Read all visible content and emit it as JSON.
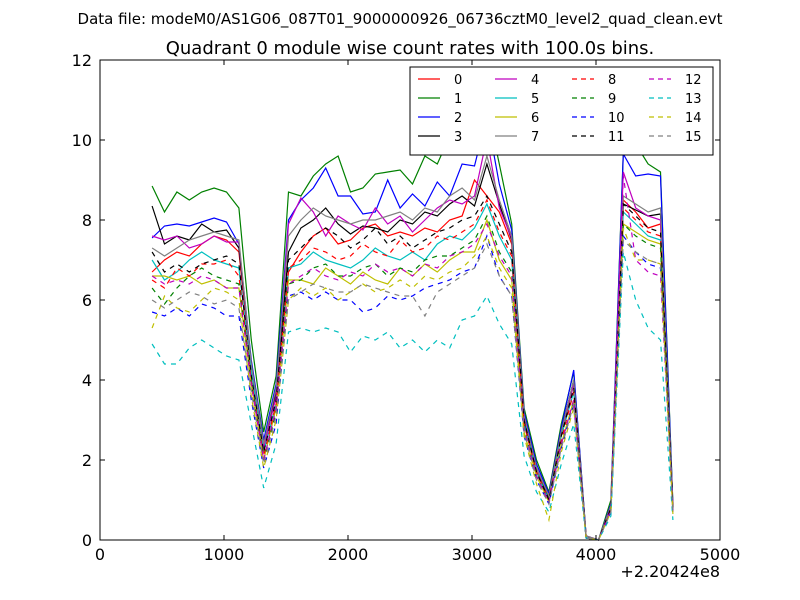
{
  "chart_data": {
    "type": "line",
    "suptitle": "Data file: modeM0/AS1G06_087T01_9000000926_06736cztM0_level2_quad_clean.evt",
    "title": "Quadrant 0 module wise count rates with 100.0s bins.",
    "xlabel": "",
    "ylabel": "",
    "x_offset_label": "+2.20424e8",
    "xlim": [
      0,
      5000
    ],
    "ylim": [
      0,
      12
    ],
    "xticks": [
      0,
      1000,
      2000,
      3000,
      4000,
      5000
    ],
    "yticks": [
      0,
      2,
      4,
      6,
      8,
      10,
      12
    ],
    "grid": false,
    "legend_position": "top-right",
    "legend_columns": 4,
    "x": [
      420,
      520,
      620,
      720,
      820,
      920,
      1020,
      1120,
      1220,
      1320,
      1420,
      1520,
      1620,
      1720,
      1820,
      1920,
      2020,
      2120,
      2220,
      2320,
      2420,
      2520,
      2620,
      2720,
      2820,
      2920,
      3020,
      3120,
      3220,
      3320,
      3420,
      3520,
      3620,
      3720,
      3820,
      3920,
      4020,
      4120,
      4220,
      4320,
      4420,
      4520,
      4620
    ],
    "series": [
      {
        "name": "0",
        "color": "#ff0000",
        "dash": "solid",
        "values": [
          6.7,
          7.0,
          7.2,
          7.1,
          7.4,
          7.6,
          7.5,
          7.2,
          4.3,
          2.3,
          3.6,
          6.7,
          7.2,
          7.6,
          7.8,
          7.4,
          7.5,
          7.8,
          7.9,
          7.6,
          7.7,
          7.6,
          7.8,
          7.7,
          8.0,
          8.1,
          9.0,
          8.6,
          8.2,
          7.4,
          3.1,
          1.7,
          1.1,
          2.6,
          3.9,
          0.1,
          0.0,
          0.8,
          8.5,
          8.2,
          7.8,
          7.9,
          0.8
        ]
      },
      {
        "name": "1",
        "color": "#008000",
        "dash": "solid",
        "values": [
          8.85,
          8.2,
          8.7,
          8.5,
          8.7,
          8.8,
          8.7,
          8.3,
          5.0,
          2.7,
          4.1,
          8.7,
          8.6,
          9.1,
          9.4,
          9.6,
          8.7,
          8.8,
          9.15,
          9.2,
          9.25,
          8.9,
          9.6,
          9.4,
          10.1,
          9.9,
          10.8,
          10.85,
          9.4,
          7.9,
          3.3,
          2.0,
          1.2,
          2.9,
          4.2,
          0.1,
          0.0,
          1.0,
          9.7,
          9.9,
          9.4,
          9.2,
          0.9
        ]
      },
      {
        "name": "2",
        "color": "#0000ff",
        "dash": "solid",
        "values": [
          7.55,
          7.85,
          7.9,
          7.85,
          7.95,
          8.05,
          7.95,
          7.4,
          4.5,
          2.5,
          3.9,
          8.0,
          8.5,
          8.8,
          9.3,
          8.6,
          8.6,
          8.15,
          8.2,
          9.0,
          8.3,
          8.65,
          8.35,
          8.95,
          8.6,
          9.4,
          9.35,
          10.6,
          8.9,
          7.75,
          3.2,
          1.9,
          1.15,
          2.8,
          4.25,
          0.1,
          0.0,
          0.9,
          9.65,
          9.1,
          9.15,
          9.1,
          0.85
        ]
      },
      {
        "name": "3",
        "color": "#000000",
        "dash": "solid",
        "values": [
          8.35,
          7.4,
          7.6,
          7.5,
          7.9,
          7.7,
          7.75,
          7.3,
          4.4,
          2.4,
          3.7,
          7.2,
          7.8,
          8.0,
          8.3,
          7.9,
          7.65,
          7.85,
          7.8,
          7.7,
          8.0,
          7.9,
          8.2,
          8.1,
          8.4,
          8.6,
          8.35,
          9.4,
          8.4,
          7.5,
          3.0,
          1.8,
          1.05,
          2.7,
          4.0,
          0.05,
          0.0,
          0.85,
          8.4,
          8.25,
          8.1,
          8.15,
          0.7
        ]
      },
      {
        "name": "4",
        "color": "#bf00bf",
        "dash": "solid",
        "values": [
          7.6,
          7.5,
          7.6,
          7.3,
          7.4,
          7.6,
          7.45,
          7.45,
          4.3,
          2.3,
          3.6,
          7.9,
          8.55,
          8.2,
          7.6,
          8.1,
          7.9,
          7.75,
          8.3,
          7.9,
          8.1,
          7.7,
          8.0,
          8.3,
          8.5,
          8.4,
          8.6,
          10.05,
          8.3,
          7.55,
          3.1,
          1.8,
          1.1,
          2.7,
          3.9,
          0.1,
          0.0,
          0.85,
          9.2,
          8.3,
          8.1,
          8.0,
          0.8
        ]
      },
      {
        "name": "5",
        "color": "#00bfbf",
        "dash": "solid",
        "values": [
          7.0,
          6.5,
          6.7,
          7.0,
          7.2,
          7.0,
          6.9,
          6.8,
          4.2,
          2.2,
          3.4,
          6.8,
          6.9,
          7.2,
          7.0,
          6.9,
          6.8,
          7.0,
          7.3,
          7.1,
          7.0,
          7.2,
          7.0,
          7.4,
          7.6,
          7.5,
          7.8,
          8.4,
          7.6,
          7.0,
          2.9,
          1.7,
          1.0,
          2.6,
          3.7,
          0.05,
          0.0,
          0.8,
          8.2,
          7.9,
          7.6,
          7.5,
          0.75
        ]
      },
      {
        "name": "6",
        "color": "#bfbf00",
        "dash": "solid",
        "values": [
          6.6,
          6.6,
          6.5,
          6.6,
          6.4,
          6.5,
          6.3,
          6.3,
          3.9,
          2.0,
          3.3,
          6.5,
          6.5,
          6.4,
          6.8,
          6.6,
          6.4,
          6.7,
          6.5,
          6.4,
          6.8,
          6.6,
          6.9,
          6.7,
          7.0,
          7.2,
          7.2,
          8.0,
          7.0,
          6.5,
          2.7,
          1.6,
          0.95,
          2.4,
          3.5,
          0.05,
          0.0,
          0.75,
          7.9,
          7.7,
          7.5,
          7.4,
          0.7
        ]
      },
      {
        "name": "7",
        "color": "#808080",
        "dash": "solid",
        "values": [
          7.3,
          7.1,
          7.3,
          7.5,
          7.6,
          7.7,
          7.6,
          7.5,
          4.4,
          2.4,
          3.8,
          7.6,
          8.0,
          8.3,
          8.1,
          8.0,
          7.9,
          8.0,
          8.0,
          8.1,
          8.2,
          8.0,
          8.3,
          8.2,
          8.6,
          8.8,
          8.5,
          9.6,
          8.5,
          7.6,
          3.1,
          1.8,
          1.1,
          2.7,
          4.0,
          0.1,
          0.0,
          0.85,
          8.6,
          8.4,
          8.2,
          8.3,
          0.8
        ]
      },
      {
        "name": "8",
        "color": "#ff0000",
        "dash": "dashed",
        "values": [
          6.5,
          6.3,
          6.8,
          6.6,
          6.9,
          6.9,
          7.0,
          6.6,
          4.0,
          2.1,
          3.4,
          6.8,
          7.0,
          7.3,
          7.2,
          7.0,
          7.1,
          7.4,
          7.2,
          7.1,
          7.5,
          7.2,
          7.3,
          7.6,
          7.5,
          7.7,
          7.9,
          8.5,
          7.7,
          7.1,
          2.9,
          1.7,
          1.0,
          2.5,
          3.7,
          0.05,
          0.0,
          0.8,
          8.3,
          8.0,
          7.7,
          7.6,
          0.75
        ]
      },
      {
        "name": "9",
        "color": "#008000",
        "dash": "dashed",
        "values": [
          6.3,
          5.9,
          6.3,
          6.6,
          6.8,
          6.6,
          6.5,
          6.4,
          3.9,
          2.0,
          3.2,
          6.4,
          6.5,
          6.8,
          6.9,
          6.6,
          6.6,
          6.8,
          6.9,
          6.6,
          6.8,
          6.7,
          7.0,
          7.1,
          7.1,
          7.3,
          7.5,
          8.1,
          7.2,
          6.7,
          2.8,
          1.6,
          0.95,
          2.4,
          3.5,
          0.05,
          0.0,
          0.75,
          7.9,
          7.6,
          7.4,
          7.3,
          0.7
        ]
      },
      {
        "name": "10",
        "color": "#0000ff",
        "dash": "dashed",
        "values": [
          5.7,
          5.6,
          5.8,
          5.6,
          5.9,
          5.8,
          5.6,
          5.6,
          3.5,
          1.8,
          2.9,
          6.1,
          6.2,
          6.0,
          6.2,
          6.0,
          6.0,
          5.7,
          5.8,
          6.1,
          6.0,
          6.1,
          6.3,
          6.4,
          6.5,
          6.7,
          6.8,
          7.6,
          6.6,
          6.1,
          2.6,
          1.5,
          0.9,
          2.3,
          3.4,
          0.05,
          0.0,
          0.7,
          7.6,
          7.2,
          6.9,
          6.8,
          0.65
        ]
      },
      {
        "name": "11",
        "color": "#000000",
        "dash": "dashed",
        "values": [
          7.2,
          6.7,
          6.9,
          6.7,
          6.9,
          7.0,
          7.1,
          6.9,
          4.1,
          2.2,
          3.5,
          7.0,
          7.3,
          7.6,
          7.8,
          7.6,
          7.3,
          7.5,
          7.8,
          7.4,
          7.6,
          7.3,
          7.5,
          7.7,
          7.8,
          8.0,
          8.1,
          8.6,
          7.9,
          7.2,
          3.0,
          1.7,
          1.0,
          2.6,
          3.8,
          0.05,
          0.0,
          0.8,
          8.4,
          8.1,
          7.8,
          7.7,
          0.75
        ]
      },
      {
        "name": "12",
        "color": "#bf00bf",
        "dash": "dashed",
        "values": [
          6.6,
          6.4,
          6.5,
          6.4,
          6.6,
          6.5,
          6.3,
          6.3,
          3.9,
          2.0,
          3.3,
          6.4,
          6.6,
          6.8,
          6.6,
          6.5,
          6.7,
          6.6,
          6.9,
          6.7,
          6.8,
          6.6,
          6.9,
          6.8,
          7.1,
          7.2,
          7.4,
          7.9,
          7.1,
          6.6,
          2.8,
          1.6,
          0.95,
          2.4,
          3.5,
          0.05,
          0.0,
          0.75,
          9.1,
          7.0,
          6.7,
          6.6,
          0.7
        ]
      },
      {
        "name": "13",
        "color": "#00bfbf",
        "dash": "dashed",
        "values": [
          4.9,
          4.4,
          4.4,
          4.8,
          5.0,
          4.8,
          4.6,
          4.5,
          2.9,
          1.3,
          2.4,
          5.2,
          5.3,
          5.2,
          5.3,
          5.2,
          4.7,
          5.1,
          5.0,
          5.2,
          4.8,
          5.0,
          4.7,
          5.0,
          4.8,
          5.5,
          5.6,
          6.1,
          5.4,
          4.9,
          2.1,
          1.2,
          0.7,
          1.9,
          2.9,
          0.05,
          0.0,
          0.6,
          7.2,
          6.0,
          5.3,
          5.0,
          0.5
        ]
      },
      {
        "name": "14",
        "color": "#bfbf00",
        "dash": "dashed",
        "values": [
          5.3,
          6.1,
          5.8,
          5.7,
          6.0,
          6.3,
          6.2,
          6.0,
          3.6,
          1.8,
          3.0,
          6.0,
          6.3,
          6.1,
          6.3,
          6.0,
          6.2,
          6.4,
          6.2,
          6.3,
          6.5,
          6.3,
          6.6,
          6.5,
          6.7,
          6.8,
          7.1,
          7.6,
          6.8,
          6.3,
          2.6,
          1.4,
          0.5,
          2.2,
          3.3,
          0.05,
          0.0,
          0.7,
          7.8,
          7.0,
          7.0,
          6.9,
          0.65
        ]
      },
      {
        "name": "15",
        "color": "#808080",
        "dash": "dashed",
        "values": [
          6.0,
          5.8,
          6.0,
          6.2,
          6.1,
          5.9,
          6.0,
          5.8,
          3.7,
          1.9,
          3.1,
          6.0,
          6.2,
          6.4,
          6.3,
          6.2,
          6.2,
          6.4,
          6.3,
          6.2,
          6.1,
          6.1,
          5.6,
          6.2,
          6.4,
          6.6,
          6.8,
          7.4,
          6.6,
          6.1,
          2.7,
          1.5,
          0.9,
          2.3,
          3.4,
          0.05,
          0.0,
          0.7,
          7.5,
          7.2,
          7.0,
          6.9,
          0.65
        ]
      }
    ]
  }
}
